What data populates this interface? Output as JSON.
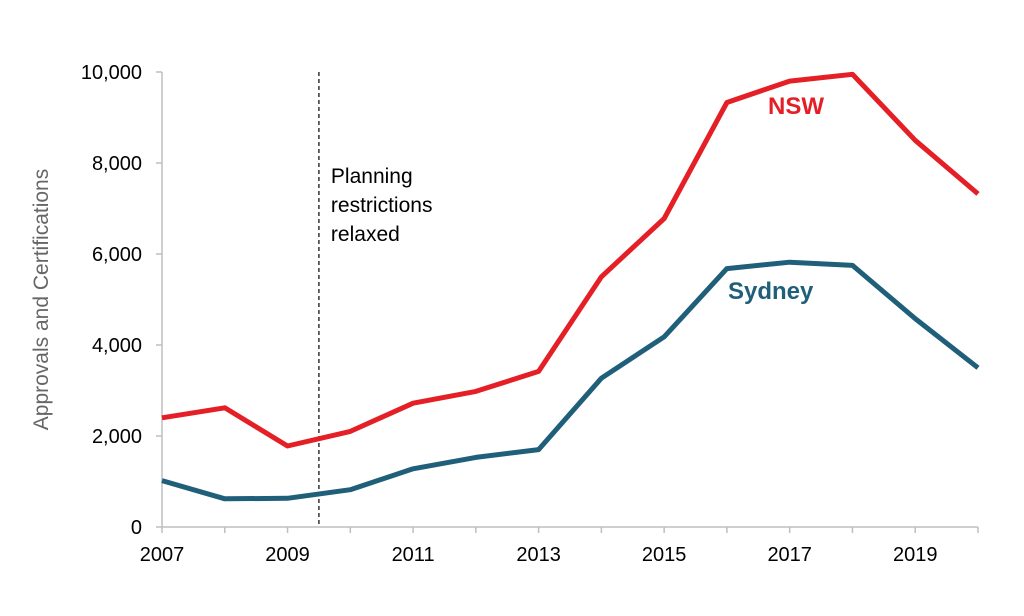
{
  "chart_data": {
    "type": "line",
    "title": "",
    "xlabel": "",
    "ylabel": "Approvals and Certifications",
    "x": [
      2007,
      2008,
      2009,
      2010,
      2011,
      2012,
      2013,
      2014,
      2015,
      2016,
      2017,
      2018,
      2019,
      2020
    ],
    "xlim": [
      2007,
      2020
    ],
    "ylim": [
      0,
      10000
    ],
    "x_tick_labels": [
      "2007",
      "2009",
      "2011",
      "2013",
      "2015",
      "2017",
      "2019"
    ],
    "y_tick_labels": [
      "0",
      "2,000",
      "4,000",
      "6,000",
      "8,000",
      "10,000"
    ],
    "y_ticks": [
      0,
      2000,
      4000,
      6000,
      8000,
      10000
    ],
    "x_ticks": [
      2007,
      2009,
      2011,
      2013,
      2015,
      2017,
      2019
    ],
    "grid": false,
    "series": [
      {
        "name": "NSW",
        "color": "#e41f26",
        "values": [
          2400,
          2620,
          1780,
          2100,
          2720,
          2980,
          3420,
          5500,
          6780,
          9330,
          9800,
          9950,
          8500,
          7320
        ]
      },
      {
        "name": "Sydney",
        "color": "#1f5f7a",
        "values": [
          1020,
          620,
          630,
          820,
          1280,
          1530,
          1700,
          3270,
          4180,
          5680,
          5820,
          5750,
          4580,
          3500
        ]
      }
    ],
    "annotations": [
      {
        "x": 2009.5,
        "style": "dashed-vertical-line",
        "lines": [
          "Planning",
          "restrictions",
          "relaxed"
        ]
      }
    ]
  }
}
